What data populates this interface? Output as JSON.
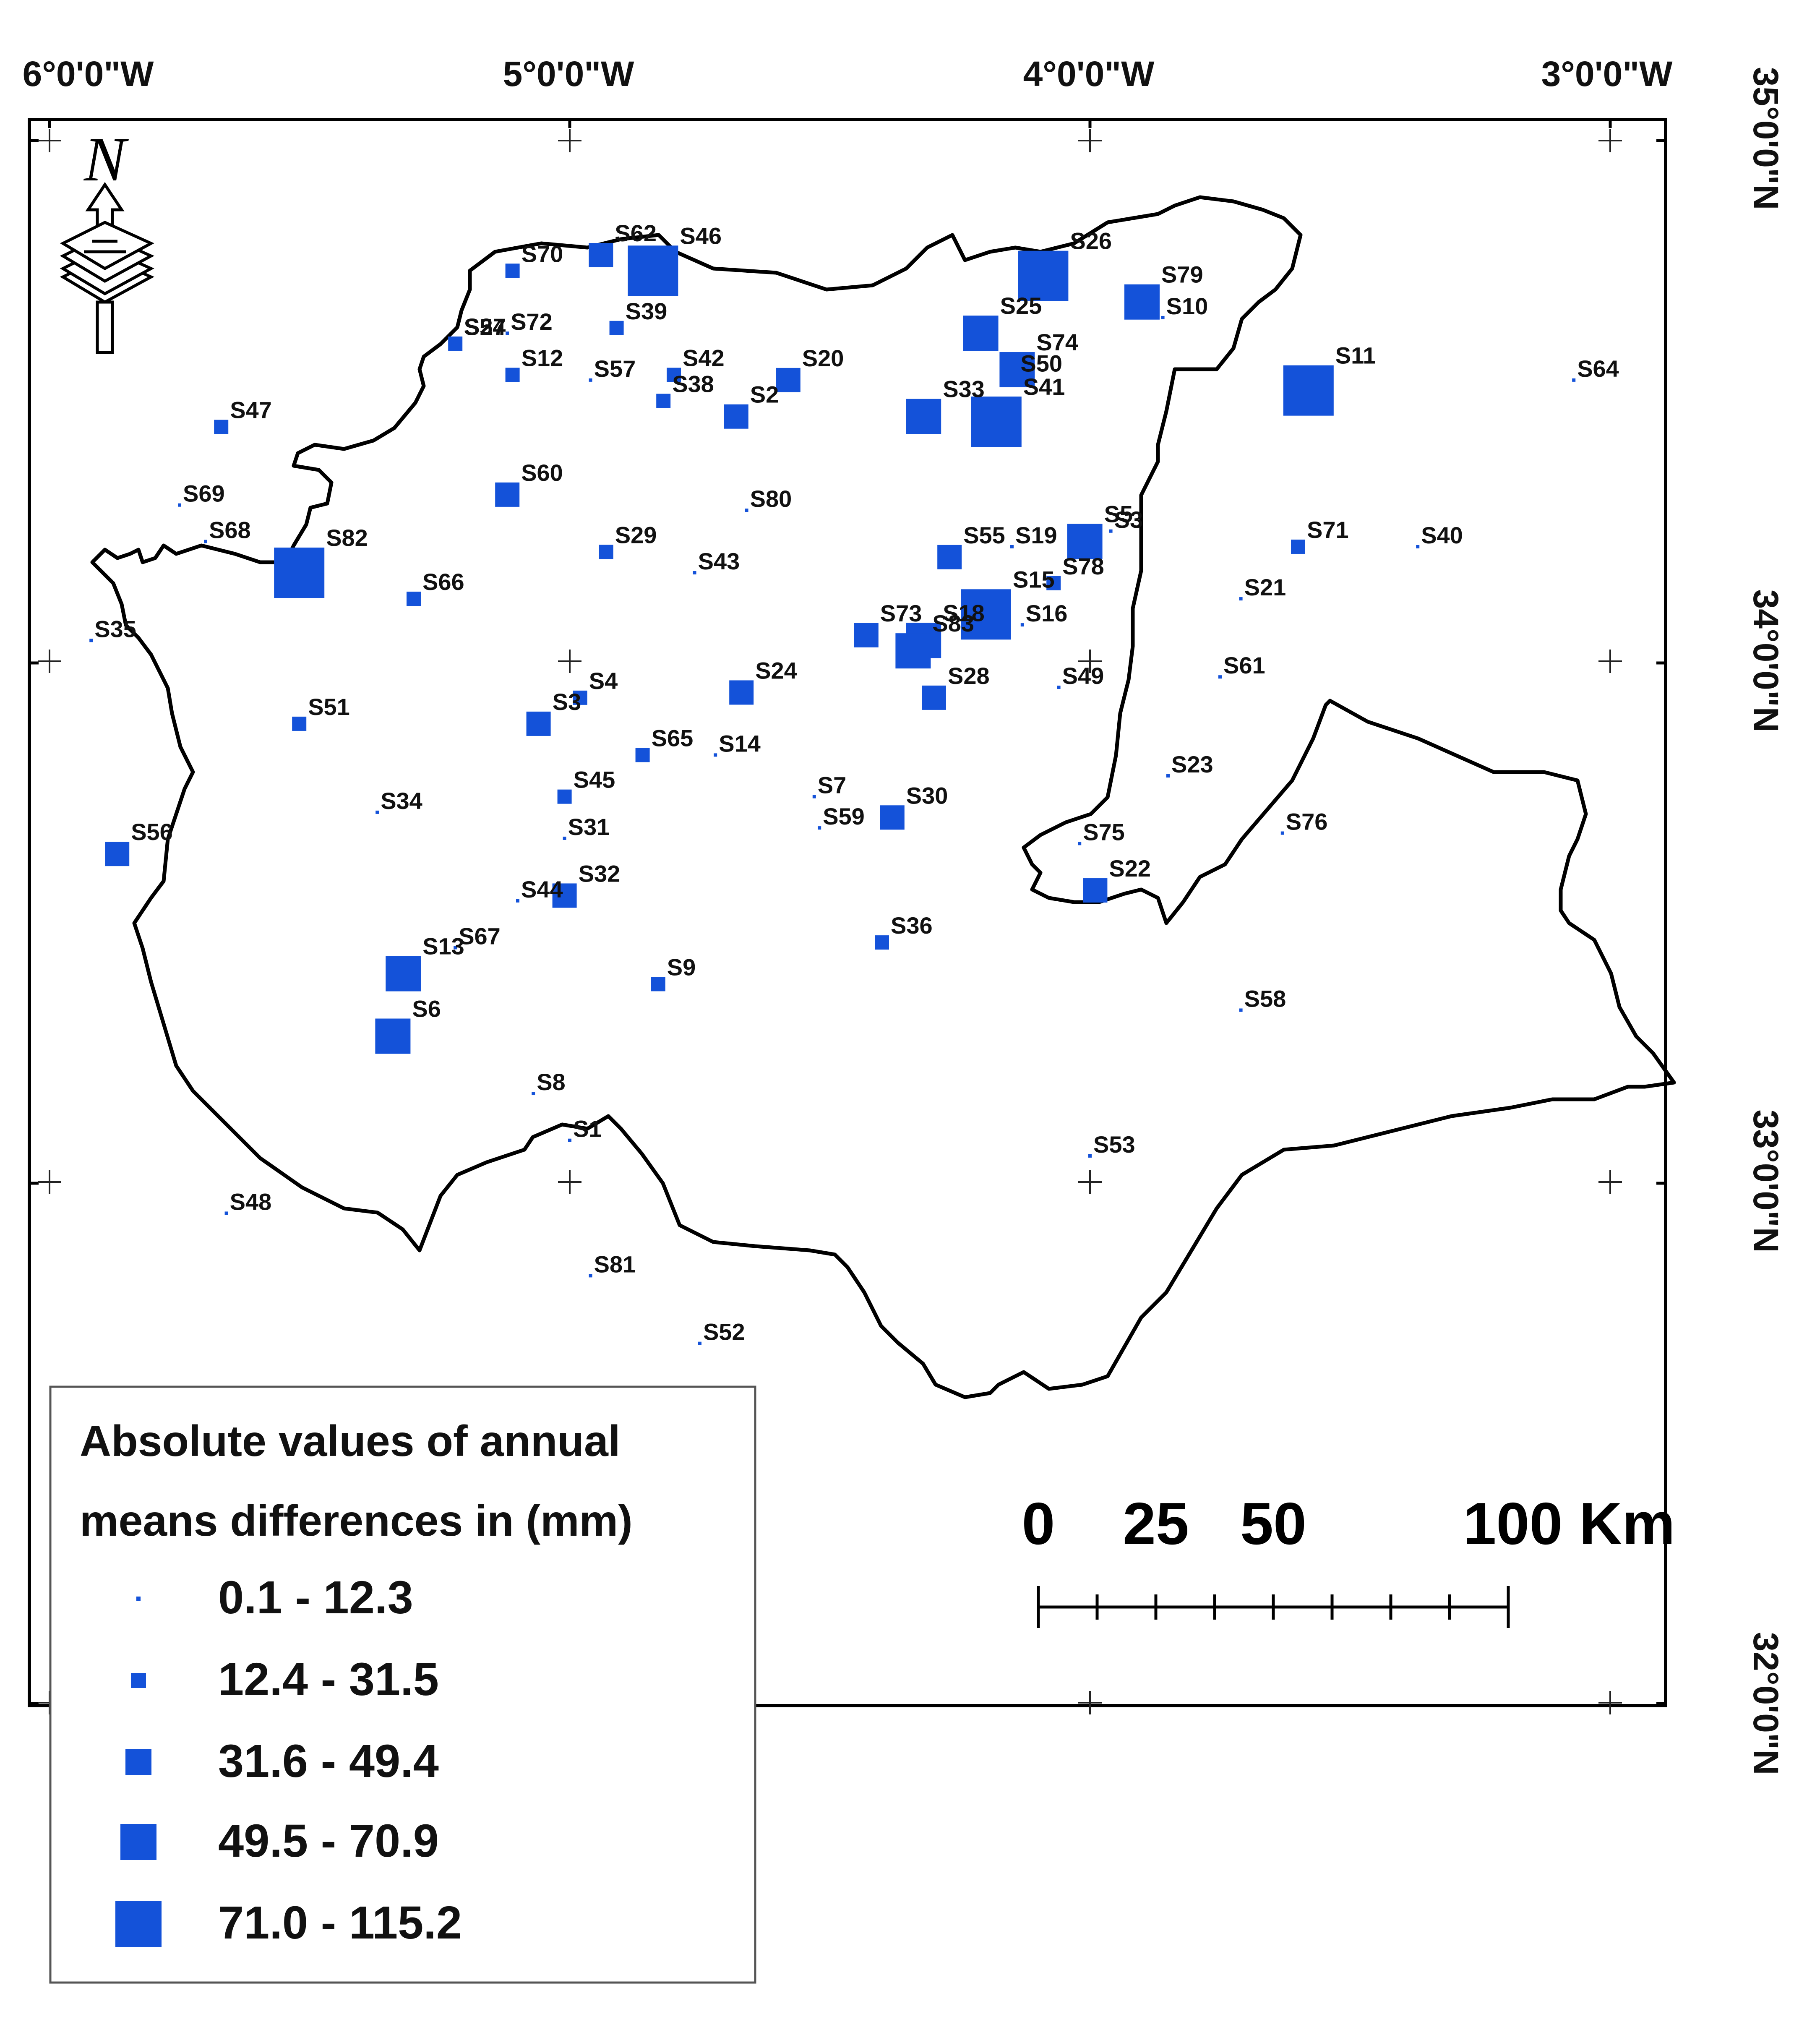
{
  "map": {
    "longitude_labels": [
      "6°0'0\"W",
      "5°0'0\"W",
      "4°0'0\"W",
      "3°0'0\"W"
    ],
    "latitude_labels": [
      "35°0'0\"N",
      "34°0'0\"N",
      "33°0'0\"N",
      "32°0'0\"N"
    ],
    "north_arrow_label": "N",
    "symbol_color": "#1452d9",
    "boundary_color": "#000000"
  },
  "legend": {
    "title_line1": "Absolute values of annual",
    "title_line2": "means differences in (mm)",
    "classes": [
      {
        "label": "0.1 - 12.3",
        "class": 1
      },
      {
        "label": "12.4 - 31.5",
        "class": 2
      },
      {
        "label": "31.6 - 49.4",
        "class": 3
      },
      {
        "label": "49.5 - 70.9",
        "class": 4
      },
      {
        "label": "71.0 - 115.2",
        "class": 5
      }
    ]
  },
  "scale_bar": {
    "ticks": [
      "0",
      "25",
      "50",
      "100 Km"
    ]
  },
  "stations": [
    {
      "id": "S70",
      "lon": -5.11,
      "lat": 34.75,
      "class": 2
    },
    {
      "id": "S62",
      "lon": -4.94,
      "lat": 34.78,
      "class": 3
    },
    {
      "id": "S46",
      "lon": -4.84,
      "lat": 34.75,
      "class": 5
    },
    {
      "id": "S39",
      "lon": -4.91,
      "lat": 34.64,
      "class": 2
    },
    {
      "id": "S26",
      "lon": -4.09,
      "lat": 34.74,
      "class": 5
    },
    {
      "id": "S25",
      "lon": -4.21,
      "lat": 34.63,
      "class": 4
    },
    {
      "id": "S79",
      "lon": -3.9,
      "lat": 34.69,
      "class": 4
    },
    {
      "id": "S10",
      "lon": -3.86,
      "lat": 34.66,
      "class": 1
    },
    {
      "id": "S74",
      "lon": -4.14,
      "lat": 34.56,
      "class": 4
    },
    {
      "id": "S11",
      "lon": -3.58,
      "lat": 34.52,
      "class": 5
    },
    {
      "id": "S64",
      "lon": -3.07,
      "lat": 34.54,
      "class": 1
    },
    {
      "id": "S27",
      "lon": -5.22,
      "lat": 34.61,
      "class": 2
    },
    {
      "id": "S54",
      "lon": -5.21,
      "lat": 34.62,
      "class": 1
    },
    {
      "id": "S72",
      "lon": -5.12,
      "lat": 34.63,
      "class": 1
    },
    {
      "id": "S12",
      "lon": -5.11,
      "lat": 34.55,
      "class": 2
    },
    {
      "id": "S57",
      "lon": -4.96,
      "lat": 34.54,
      "class": 1
    },
    {
      "id": "S42",
      "lon": -4.8,
      "lat": 34.55,
      "class": 2
    },
    {
      "id": "S38",
      "lon": -4.82,
      "lat": 34.5,
      "class": 2
    },
    {
      "id": "S2",
      "lon": -4.68,
      "lat": 34.47,
      "class": 3
    },
    {
      "id": "S20",
      "lon": -4.58,
      "lat": 34.54,
      "class": 3
    },
    {
      "id": "S33",
      "lon": -4.32,
      "lat": 34.47,
      "class": 4
    },
    {
      "id": "S50",
      "lon": -4.14,
      "lat": 34.55,
      "class": 1
    },
    {
      "id": "S41",
      "lon": -4.18,
      "lat": 34.46,
      "class": 5
    },
    {
      "id": "S47",
      "lon": -5.67,
      "lat": 34.45,
      "class": 2
    },
    {
      "id": "S60",
      "lon": -5.12,
      "lat": 34.32,
      "class": 3
    },
    {
      "id": "S69",
      "lon": -5.75,
      "lat": 34.3,
      "class": 1
    },
    {
      "id": "S80",
      "lon": -4.66,
      "lat": 34.29,
      "class": 1
    },
    {
      "id": "S68",
      "lon": -5.7,
      "lat": 34.23,
      "class": 1
    },
    {
      "id": "S82",
      "lon": -5.52,
      "lat": 34.17,
      "class": 5
    },
    {
      "id": "S29",
      "lon": -4.93,
      "lat": 34.21,
      "class": 2
    },
    {
      "id": "S43",
      "lon": -4.76,
      "lat": 34.17,
      "class": 1
    },
    {
      "id": "S55",
      "lon": -4.27,
      "lat": 34.2,
      "class": 3
    },
    {
      "id": "S19",
      "lon": -4.15,
      "lat": 34.22,
      "class": 1
    },
    {
      "id": "S5",
      "lon": -4.01,
      "lat": 34.23,
      "class": 4
    },
    {
      "id": "S3b",
      "lon": -3.96,
      "lat": 34.25,
      "class": 1
    },
    {
      "id": "S71",
      "lon": -3.6,
      "lat": 34.22,
      "class": 2
    },
    {
      "id": "S40",
      "lon": -3.37,
      "lat": 34.22,
      "class": 1
    },
    {
      "id": "S66",
      "lon": -5.3,
      "lat": 34.12,
      "class": 2
    },
    {
      "id": "S78",
      "lon": -4.07,
      "lat": 34.15,
      "class": 2
    },
    {
      "id": "S21",
      "lon": -3.71,
      "lat": 34.12,
      "class": 1
    },
    {
      "id": "S35",
      "lon": -5.92,
      "lat": 34.04,
      "class": 1
    },
    {
      "id": "S73",
      "lon": -4.43,
      "lat": 34.05,
      "class": 3
    },
    {
      "id": "S18",
      "lon": -4.32,
      "lat": 34.04,
      "class": 4
    },
    {
      "id": "S16",
      "lon": -4.13,
      "lat": 34.07,
      "class": 1
    },
    {
      "id": "S15",
      "lon": -4.2,
      "lat": 34.09,
      "class": 5
    },
    {
      "id": "S83",
      "lon": -4.34,
      "lat": 34.02,
      "class": 4
    },
    {
      "id": "S28",
      "lon": -4.3,
      "lat": 33.93,
      "class": 3
    },
    {
      "id": "S49",
      "lon": -4.06,
      "lat": 33.95,
      "class": 1
    },
    {
      "id": "S61",
      "lon": -3.75,
      "lat": 33.97,
      "class": 1
    },
    {
      "id": "S24",
      "lon": -4.67,
      "lat": 33.94,
      "class": 3
    },
    {
      "id": "S51",
      "lon": -5.52,
      "lat": 33.88,
      "class": 2
    },
    {
      "id": "S4",
      "lon": -4.98,
      "lat": 33.93,
      "class": 2
    },
    {
      "id": "S3",
      "lon": -5.06,
      "lat": 33.88,
      "class": 3
    },
    {
      "id": "S65",
      "lon": -4.86,
      "lat": 33.82,
      "class": 2
    },
    {
      "id": "S14",
      "lon": -4.72,
      "lat": 33.82,
      "class": 1
    },
    {
      "id": "S7",
      "lon": -4.53,
      "lat": 33.74,
      "class": 1
    },
    {
      "id": "S59",
      "lon": -4.52,
      "lat": 33.68,
      "class": 1
    },
    {
      "id": "S30",
      "lon": -4.38,
      "lat": 33.7,
      "class": 3
    },
    {
      "id": "S45",
      "lon": -5.01,
      "lat": 33.74,
      "class": 2
    },
    {
      "id": "S31",
      "lon": -5.01,
      "lat": 33.66,
      "class": 1
    },
    {
      "id": "S34",
      "lon": -5.37,
      "lat": 33.71,
      "class": 1
    },
    {
      "id": "S23",
      "lon": -3.85,
      "lat": 33.78,
      "class": 1
    },
    {
      "id": "S76",
      "lon": -3.63,
      "lat": 33.67,
      "class": 1
    },
    {
      "id": "S75",
      "lon": -4.02,
      "lat": 33.65,
      "class": 1
    },
    {
      "id": "S22",
      "lon": -3.99,
      "lat": 33.56,
      "class": 3
    },
    {
      "id": "S56",
      "lon": -5.87,
      "lat": 33.63,
      "class": 3
    },
    {
      "id": "S44",
      "lon": -5.1,
      "lat": 33.54,
      "class": 1
    },
    {
      "id": "S32",
      "lon": -5.01,
      "lat": 33.55,
      "class": 3
    },
    {
      "id": "S36",
      "lon": -4.4,
      "lat": 33.46,
      "class": 2
    },
    {
      "id": "S67",
      "lon": -5.22,
      "lat": 33.45,
      "class": 1
    },
    {
      "id": "S13",
      "lon": -5.32,
      "lat": 33.4,
      "class": 4
    },
    {
      "id": "S9",
      "lon": -4.83,
      "lat": 33.38,
      "class": 2
    },
    {
      "id": "S6",
      "lon": -5.34,
      "lat": 33.28,
      "class": 4
    },
    {
      "id": "S58",
      "lon": -3.71,
      "lat": 33.33,
      "class": 1
    },
    {
      "id": "S8",
      "lon": -5.07,
      "lat": 33.17,
      "class": 1
    },
    {
      "id": "S1",
      "lon": -5.0,
      "lat": 33.08,
      "class": 1
    },
    {
      "id": "S53",
      "lon": -4.0,
      "lat": 33.05,
      "class": 1
    },
    {
      "id": "S48",
      "lon": -5.66,
      "lat": 32.94,
      "class": 1
    },
    {
      "id": "S81",
      "lon": -4.96,
      "lat": 32.82,
      "class": 1
    },
    {
      "id": "S52",
      "lon": -4.75,
      "lat": 32.69,
      "class": 1
    }
  ],
  "station_labels": [
    "S70",
    "S62",
    "S46",
    "S39",
    "S26",
    "S25",
    "S79",
    "S10",
    "S74",
    "S11",
    "S64",
    "S27",
    "S54",
    "S72",
    "S12",
    "S57",
    "S42",
    "S38",
    "S2",
    "S20",
    "S33",
    "S50",
    "S41",
    "S47",
    "S60",
    "S69",
    "S80",
    "S68",
    "S82",
    "S29",
    "S43",
    "S55",
    "S19",
    "S5",
    "S3",
    "S71",
    "S40",
    "S66",
    "S78",
    "S21",
    "S35",
    "S73",
    "S18",
    "S16",
    "S15",
    "S83",
    "S28",
    "S49",
    "S61",
    "S24",
    "S51",
    "S4",
    "S3",
    "S65",
    "S14",
    "S7",
    "S59",
    "S30",
    "S45",
    "S31",
    "S34",
    "S23",
    "S76",
    "S75",
    "S22",
    "S56",
    "S44",
    "S32",
    "S36",
    "S67",
    "S13",
    "S9",
    "S6",
    "S58",
    "S8",
    "S1",
    "S53",
    "S48",
    "S81",
    "S52"
  ]
}
